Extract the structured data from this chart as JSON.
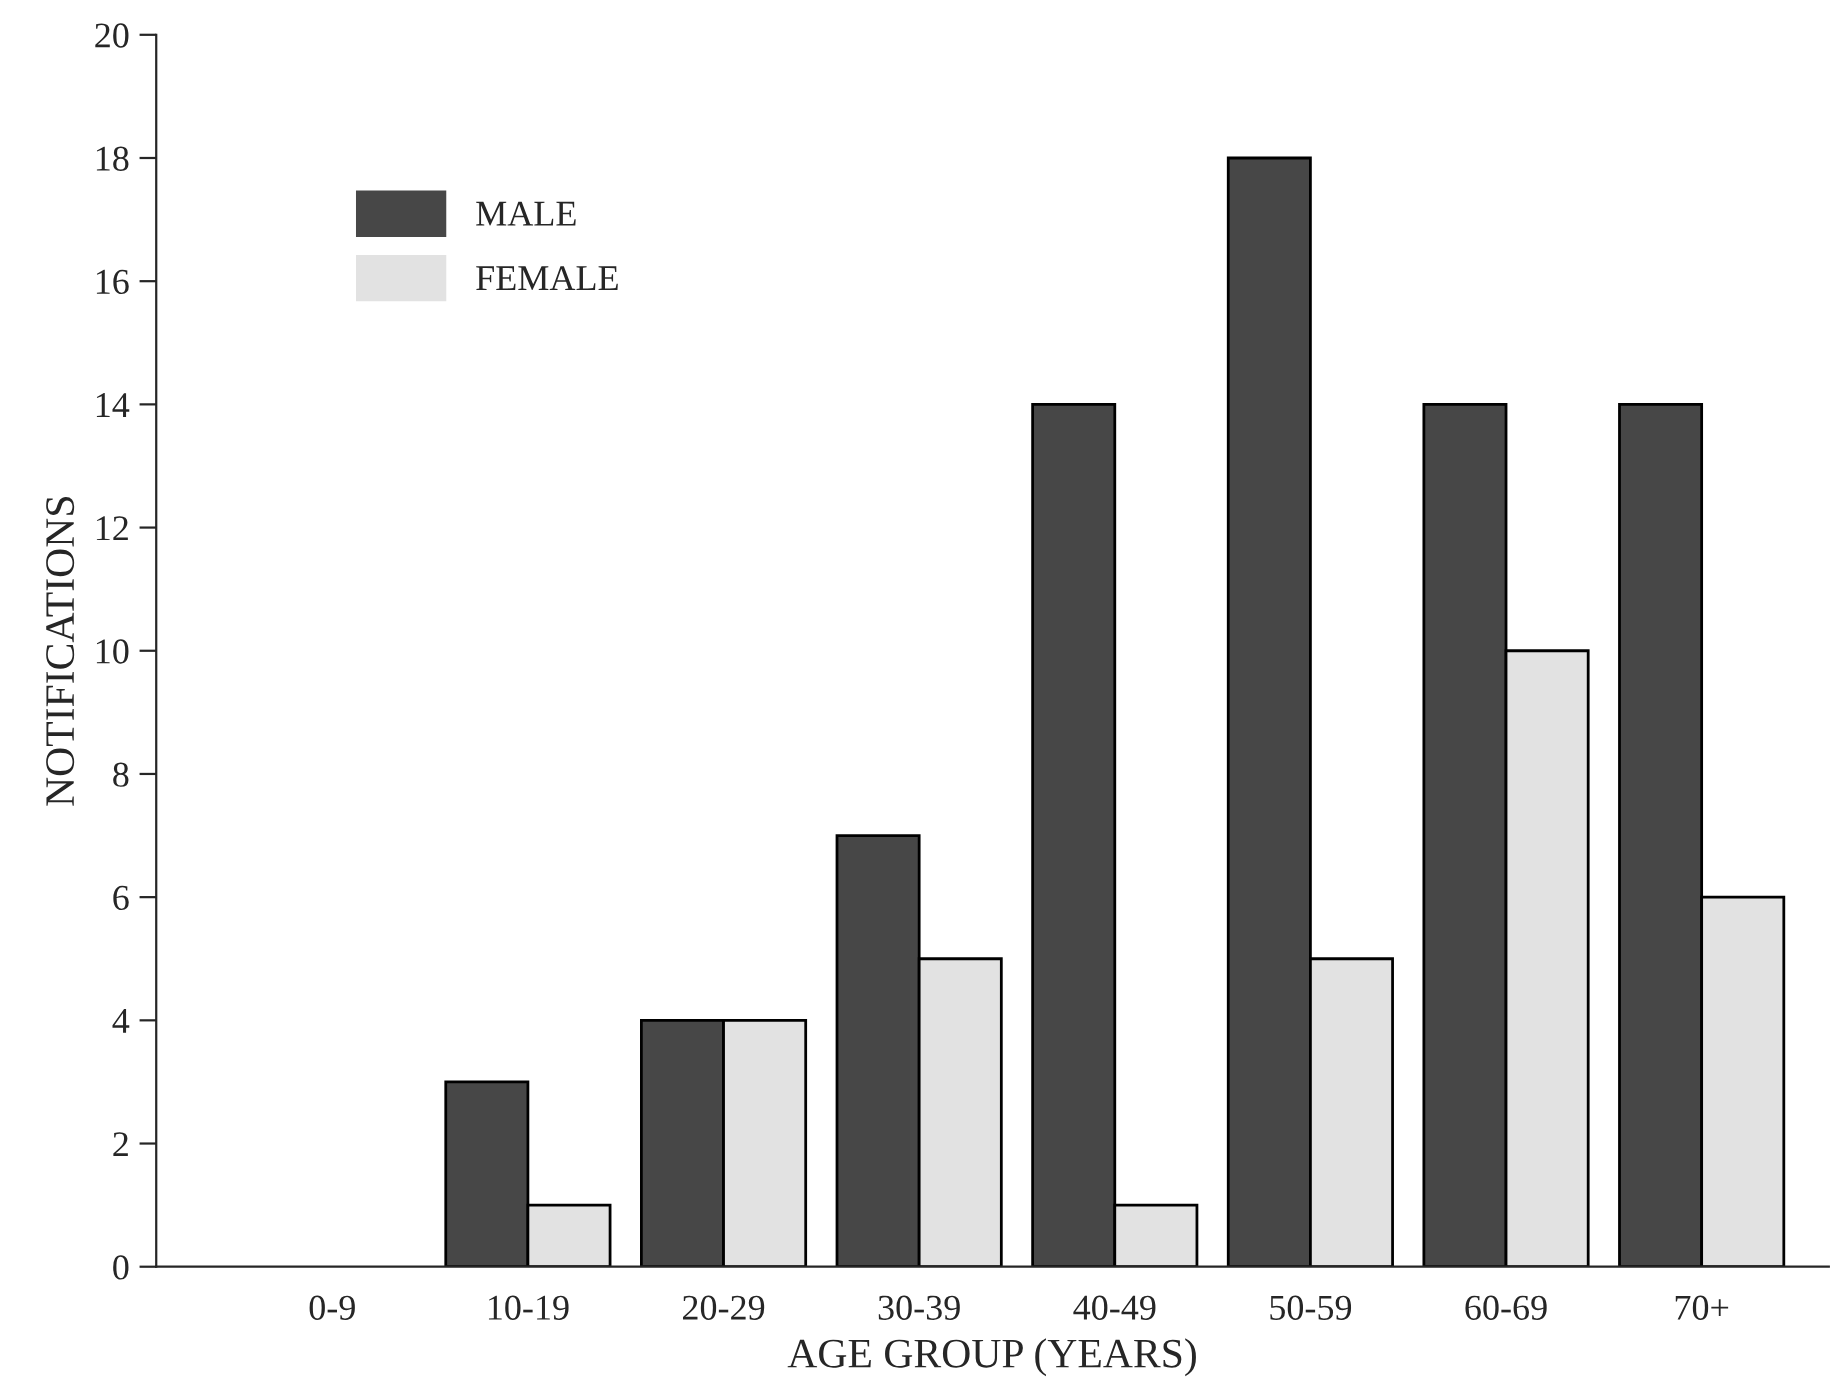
{
  "chart_data": {
    "type": "bar",
    "xlabel": "AGE GROUP (YEARS)",
    "ylabel": "NOTIFICATIONS",
    "categories": [
      "0-9",
      "10-19",
      "20-29",
      "30-39",
      "40-49",
      "50-59",
      "60-69",
      "70+"
    ],
    "series": [
      {
        "name": "MALE",
        "color": "#474747",
        "values": [
          0,
          3,
          4,
          7,
          14,
          18,
          14,
          14
        ]
      },
      {
        "name": "FEMALE",
        "color": "#e2e2e2",
        "values": [
          0,
          1,
          4,
          5,
          1,
          5,
          10,
          6
        ]
      }
    ],
    "ylim": [
      0,
      20
    ],
    "yticks": [
      0,
      2,
      4,
      6,
      8,
      10,
      12,
      14,
      16,
      18,
      20
    ],
    "grid": false,
    "legend": "top left"
  }
}
